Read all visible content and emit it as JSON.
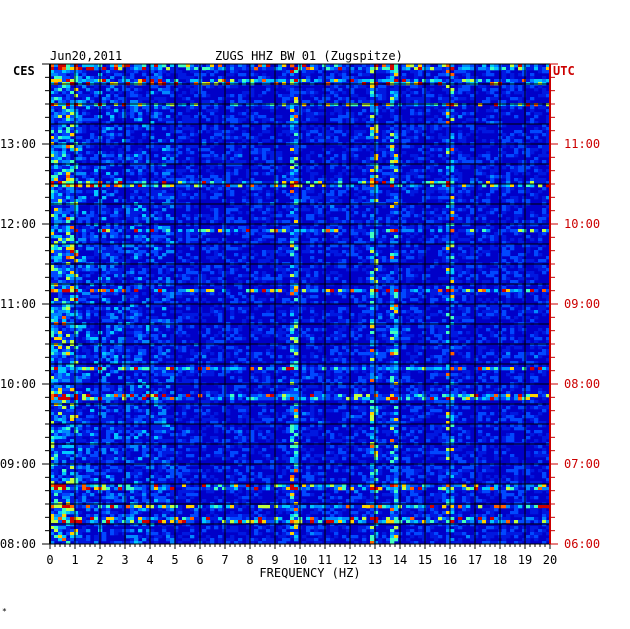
{
  "header": {
    "date": "Jun20,2011",
    "station": "ZUGS HHZ BW 01 (Zugspitze)",
    "left_zone": "CES",
    "right_zone": "UTC"
  },
  "footer": {
    "xlabel": "FREQUENCY (HZ)",
    "corner_mark": "*"
  },
  "colors": {
    "background": "#0000c8",
    "tick_left": "#000000",
    "tick_right": "#cc0000",
    "grid": "#000000",
    "palette": [
      "#0000c8",
      "#0018e0",
      "#0048ff",
      "#0088ff",
      "#00c8ff",
      "#40ffc0",
      "#c0ff40",
      "#ffd000",
      "#ff6000",
      "#d00000"
    ]
  },
  "chart_data": {
    "type": "heatmap",
    "title": "ZUGS HHZ BW 01 (Zugspitze)",
    "xlabel": "FREQUENCY (HZ)",
    "ylabel_left": "CES",
    "ylabel_right": "UTC",
    "xlim": [
      0,
      20
    ],
    "x_ticks": [
      "0",
      "1",
      "2",
      "3",
      "4",
      "5",
      "6",
      "7",
      "8",
      "9",
      "10",
      "11",
      "12",
      "13",
      "14",
      "15",
      "16",
      "17",
      "18",
      "19",
      "20"
    ],
    "y_ticks_left": [
      "08:00",
      "09:00",
      "10:00",
      "11:00",
      "12:00",
      "13:00"
    ],
    "y_ticks_right": [
      "06:00",
      "07:00",
      "08:00",
      "09:00",
      "10:00",
      "11:00"
    ],
    "time_range_utc": [
      "06:00",
      "12:00"
    ],
    "time_direction": "upward",
    "grid": true,
    "persistent_lines_hz": [
      9.8,
      13.0,
      13.8,
      16.0
    ],
    "intense_bands_utc": [
      "06:18",
      "06:28",
      "06:43",
      "07:50",
      "08:12",
      "09:10",
      "09:55",
      "10:30",
      "11:30",
      "11:46",
      "11:58"
    ]
  }
}
